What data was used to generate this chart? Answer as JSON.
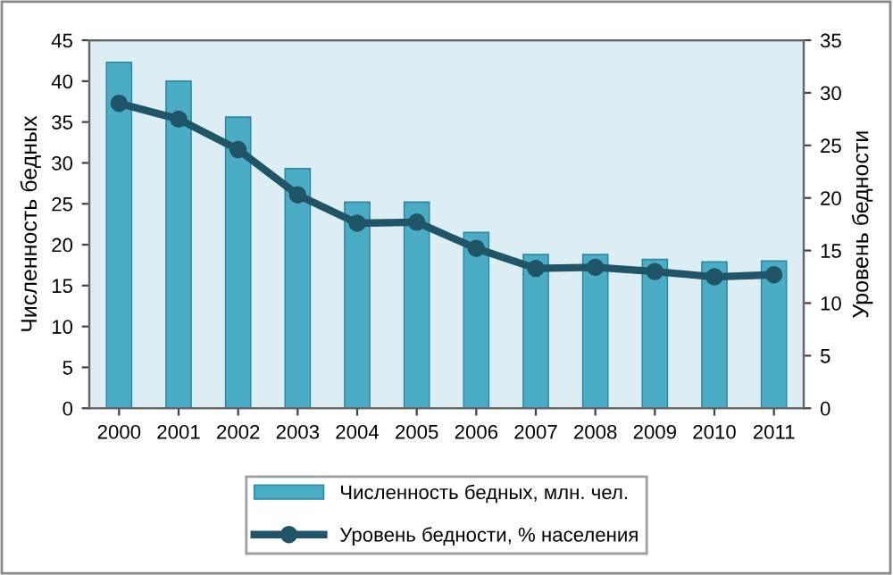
{
  "chart_data": {
    "type": "bar",
    "categories": [
      "2000",
      "2001",
      "2002",
      "2003",
      "2004",
      "2005",
      "2006",
      "2007",
      "2008",
      "2009",
      "2010",
      "2011"
    ],
    "series": [
      {
        "name": "Численность бедных, млн. чел.",
        "color": "#4bacc6",
        "values": [
          42.3,
          40.0,
          35.6,
          29.3,
          25.2,
          25.2,
          21.5,
          18.8,
          18.8,
          18.2,
          17.9,
          18.0
        ]
      },
      {
        "name": "Уровень бедности, % населения",
        "type": "line",
        "axis": "y2",
        "color": "#1f5566",
        "marker": "circle",
        "values": [
          29.0,
          27.5,
          24.6,
          20.3,
          17.6,
          17.7,
          15.2,
          13.3,
          13.4,
          13.0,
          12.5,
          12.7
        ]
      }
    ],
    "ylabel": "Численность бедных",
    "y2label": "Уровень бедности",
    "ylim": [
      0,
      45
    ],
    "yticks": [
      0,
      5,
      10,
      15,
      20,
      25,
      30,
      35,
      40,
      45
    ],
    "y2lim": [
      0,
      35
    ],
    "y2ticks": [
      0,
      5,
      10,
      15,
      20,
      25,
      30,
      35
    ],
    "grid": false,
    "legend": "bottom"
  }
}
